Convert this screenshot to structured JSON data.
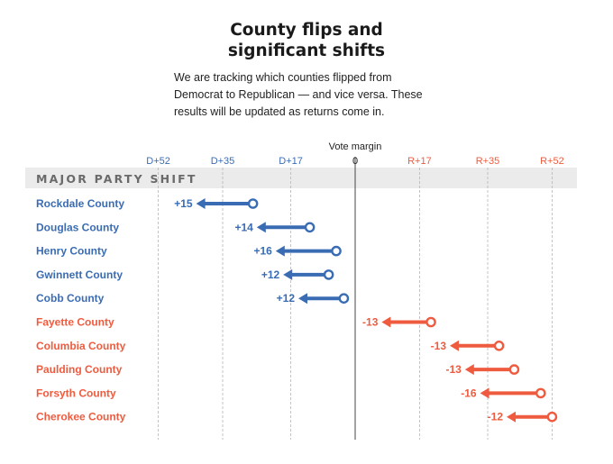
{
  "header": {
    "title_line1": "County flips and",
    "title_line2": "significant shifts",
    "desc_line1": "We are tracking which counties flipped from",
    "desc_line2": "Democrat to Republican — and vice versa. These",
    "desc_line3": "results will be updated as returns come in."
  },
  "colors": {
    "dem": "#3a6cb4",
    "rep": "#ef5b3f",
    "grid": "#b5b5b5",
    "band": "#ebebeb"
  },
  "chart_data": {
    "type": "dot-arrow",
    "axis_title": "Vote margin",
    "section_label": "MAJOR PARTY SHIFT",
    "xlim": [
      -52,
      52
    ],
    "ticks": [
      {
        "value": -52,
        "label": "D+52",
        "party": "dem"
      },
      {
        "value": -35,
        "label": "D+35",
        "party": "dem"
      },
      {
        "value": -17,
        "label": "D+17",
        "party": "dem"
      },
      {
        "value": 0,
        "label": "0",
        "party": "neutral"
      },
      {
        "value": 17,
        "label": "R+17",
        "party": "rep"
      },
      {
        "value": 35,
        "label": "R+35",
        "party": "rep"
      },
      {
        "value": 52,
        "label": "R+52",
        "party": "rep"
      }
    ],
    "rows": [
      {
        "county": "Rockdale County",
        "start": -27,
        "end": -42,
        "label": "+15",
        "party": "dem"
      },
      {
        "county": "Douglas County",
        "start": -12,
        "end": -26,
        "label": "+14",
        "party": "dem"
      },
      {
        "county": "Henry County",
        "start": -5,
        "end": -21,
        "label": "+16",
        "party": "dem"
      },
      {
        "county": "Gwinnett County",
        "start": -7,
        "end": -19,
        "label": "+12",
        "party": "dem"
      },
      {
        "county": "Cobb County",
        "start": -3,
        "end": -15,
        "label": "+12",
        "party": "dem"
      },
      {
        "county": "Fayette County",
        "start": 20,
        "end": 7,
        "label": "-13",
        "party": "rep"
      },
      {
        "county": "Columbia County",
        "start": 38,
        "end": 25,
        "label": "-13",
        "party": "rep"
      },
      {
        "county": "Paulding County",
        "start": 42,
        "end": 29,
        "label": "-13",
        "party": "rep"
      },
      {
        "county": "Forsyth County",
        "start": 49,
        "end": 33,
        "label": "-16",
        "party": "rep"
      },
      {
        "county": "Cherokee County",
        "start": 52,
        "end": 40,
        "label": "-12",
        "party": "rep"
      }
    ]
  }
}
